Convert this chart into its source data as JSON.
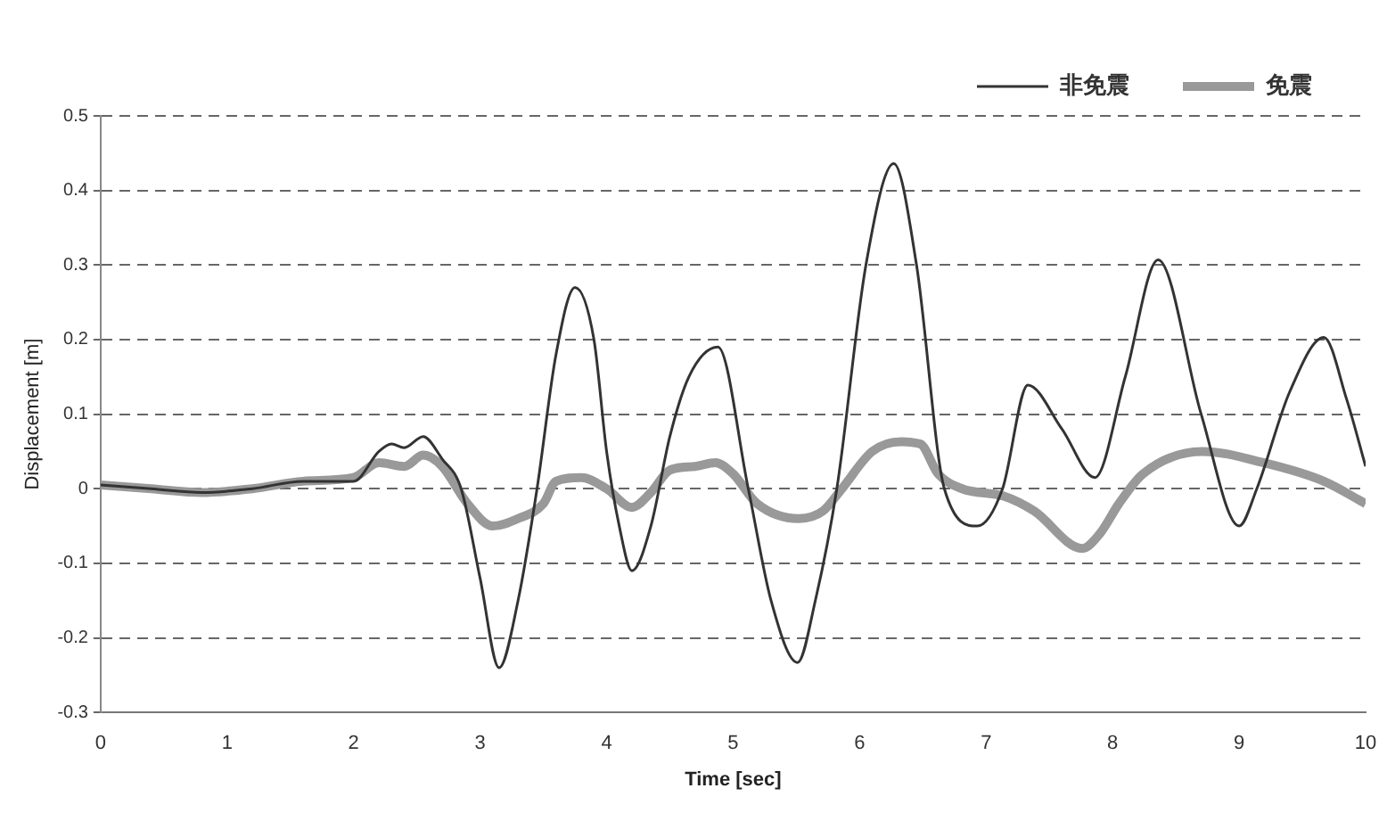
{
  "chart_data": {
    "type": "line",
    "xlabel": "Time [sec]",
    "ylabel": "Displacement [m]",
    "xlim": [
      0,
      10
    ],
    "xticks": [
      0,
      1,
      2,
      3,
      4,
      5,
      6,
      7,
      8,
      9,
      10
    ],
    "ylim": [
      -0.3,
      0.5
    ],
    "yticks": [
      -0.3,
      -0.2,
      -0.1,
      0,
      0.1,
      0.2,
      0.3,
      0.4,
      0.5
    ],
    "grid": "y",
    "legend": "top right",
    "marker": "none",
    "line_style": "solid",
    "series": [
      {
        "name": "非免震",
        "color": "#333333",
        "x": [
          0,
          0.4,
          0.8,
          1.2,
          1.6,
          2.0,
          2.2,
          2.3,
          2.4,
          2.55,
          2.7,
          2.85,
          3.0,
          3.15,
          3.3,
          3.45,
          3.6,
          3.75,
          3.9,
          4.0,
          4.1,
          4.2,
          4.35,
          4.5,
          4.65,
          4.88,
          5.12,
          5.3,
          5.51,
          5.65,
          5.82,
          6.05,
          6.27,
          6.45,
          6.67,
          6.93,
          7.13,
          7.33,
          7.6,
          7.86,
          8.1,
          8.36,
          8.7,
          9.0,
          9.14,
          9.4,
          9.67,
          9.85,
          10.0
        ],
        "values": [
          0.005,
          0,
          -0.005,
          0,
          0.01,
          0.01,
          0.05,
          0.06,
          0.055,
          0.07,
          0.04,
          0,
          -0.12,
          -0.24,
          -0.15,
          0,
          0.18,
          0.27,
          0.2,
          0.05,
          -0.05,
          -0.11,
          -0.05,
          0.07,
          0.15,
          0.19,
          0,
          -0.15,
          -0.233,
          -0.15,
          0,
          0.3,
          0.436,
          0.3,
          0,
          -0.05,
          0,
          0.139,
          0.08,
          0.015,
          0.15,
          0.307,
          0.1,
          -0.05,
          0,
          0.13,
          0.203,
          0.12,
          0.03
        ]
      },
      {
        "name": "免震",
        "color": "#999999",
        "x": [
          0,
          0.4,
          0.8,
          1.2,
          1.6,
          2.0,
          2.2,
          2.4,
          2.55,
          2.7,
          2.9,
          3.1,
          3.3,
          3.5,
          3.6,
          3.8,
          4.0,
          4.2,
          4.35,
          4.5,
          4.7,
          4.86,
          5.0,
          5.19,
          5.52,
          5.71,
          5.86,
          6.1,
          6.33,
          6.48,
          6.62,
          6.81,
          7.14,
          7.38,
          7.76,
          7.9,
          8.05,
          8.24,
          8.71,
          9.19,
          9.67,
          10.0
        ],
        "values": [
          0.005,
          0,
          -0.005,
          0,
          0.01,
          0.015,
          0.035,
          0.03,
          0.045,
          0.03,
          -0.02,
          -0.05,
          -0.04,
          -0.02,
          0.01,
          0.015,
          0,
          -0.025,
          -0.005,
          0.025,
          0.03,
          0.035,
          0.02,
          -0.02,
          -0.04,
          -0.03,
          0,
          0.05,
          0.063,
          0.06,
          0.02,
          0,
          -0.01,
          -0.03,
          -0.08,
          -0.06,
          -0.02,
          0.02,
          0.05,
          0.035,
          0.01,
          -0.02
        ]
      }
    ]
  }
}
